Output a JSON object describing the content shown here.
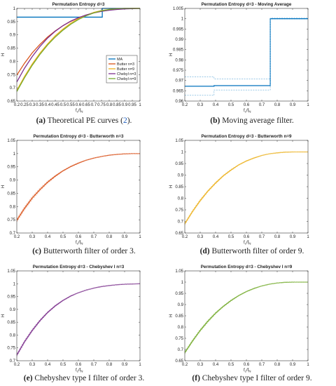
{
  "chart_data": [
    {
      "id": "a",
      "type": "line",
      "title": "Permutation Entropy d=3",
      "xlabel_main": "f",
      "xlabel_sub1": "c",
      "xlabel_mid": "/f",
      "xlabel_sub2": "N",
      "ylabel": "H",
      "xlim": [
        0.2,
        1
      ],
      "ylim": [
        0.65,
        1
      ],
      "xticks": [
        "0.2",
        "0.25",
        "0.3",
        "0.35",
        "0.4",
        "0.45",
        "0.5",
        "0.55",
        "0.6",
        "0.65",
        "0.7",
        "0.75",
        "0.8",
        "0.85",
        "0.9",
        "0.95",
        "1"
      ],
      "yticks": [
        "0.65",
        "0.7",
        "0.75",
        "0.8",
        "0.85",
        "0.9",
        "0.95",
        "1"
      ],
      "legend_position": "bottom-right",
      "caption_label": "(a)",
      "caption_text": " Theoretical PE curves (",
      "caption_ref": "2",
      "caption_end": ").",
      "series": [
        {
          "name": "MA",
          "color": "#0072bd",
          "x": [
            0.2,
            0.755,
            0.755,
            1
          ],
          "y": [
            0.967,
            0.967,
            1.0,
            1.0
          ]
        },
        {
          "name": "Butter n=3",
          "color": "#d95319",
          "x": [
            0.2,
            0.25,
            0.3,
            0.35,
            0.4,
            0.45,
            0.5,
            0.55,
            0.6,
            0.65,
            0.7,
            0.75,
            0.8,
            0.85,
            0.9,
            0.95,
            1
          ],
          "y": [
            0.748,
            0.793,
            0.832,
            0.864,
            0.892,
            0.915,
            0.935,
            0.951,
            0.964,
            0.975,
            0.983,
            0.989,
            0.994,
            0.997,
            0.999,
            1.0,
            1.0
          ]
        },
        {
          "name": "Butter n=9",
          "color": "#edb120",
          "x": [
            0.2,
            0.25,
            0.3,
            0.35,
            0.4,
            0.45,
            0.5,
            0.55,
            0.6,
            0.65,
            0.7,
            0.75,
            0.8,
            0.85,
            0.9,
            0.95,
            1
          ],
          "y": [
            0.69,
            0.743,
            0.79,
            0.831,
            0.866,
            0.897,
            0.922,
            0.944,
            0.961,
            0.974,
            0.985,
            0.992,
            0.996,
            0.999,
            1.0,
            1.0,
            1.0
          ]
        },
        {
          "name": "Chebyl n=3",
          "color": "#7e2f8e",
          "x": [
            0.2,
            0.25,
            0.3,
            0.35,
            0.4,
            0.45,
            0.5,
            0.55,
            0.6,
            0.65,
            0.7,
            0.75,
            0.8,
            0.85,
            0.9,
            0.95,
            1
          ],
          "y": [
            0.722,
            0.774,
            0.818,
            0.856,
            0.888,
            0.914,
            0.935,
            0.952,
            0.965,
            0.975,
            0.983,
            0.989,
            0.993,
            0.996,
            0.998,
            0.999,
            1.0
          ]
        },
        {
          "name": "Chebyl n=9",
          "color": "#77ac30",
          "x": [
            0.2,
            0.25,
            0.3,
            0.35,
            0.4,
            0.45,
            0.5,
            0.55,
            0.6,
            0.65,
            0.7,
            0.75,
            0.8,
            0.85,
            0.9,
            0.95,
            1
          ],
          "y": [
            0.686,
            0.738,
            0.785,
            0.826,
            0.862,
            0.892,
            0.918,
            0.94,
            0.958,
            0.972,
            0.983,
            0.991,
            0.996,
            0.999,
            1.0,
            1.0,
            1.0
          ]
        }
      ]
    },
    {
      "id": "b",
      "type": "line",
      "title": "Permutation Entropy d=3 - Moving Average",
      "xlabel_main": "f",
      "xlabel_sub1": "c",
      "xlabel_mid": "/f",
      "xlabel_sub2": "N",
      "ylabel": "H",
      "xlim": [
        0.2,
        1
      ],
      "ylim": [
        0.96,
        1.005
      ],
      "xticks": [
        "0.2",
        "0.3",
        "0.4",
        "0.5",
        "0.6",
        "0.7",
        "0.8",
        "0.9",
        "1"
      ],
      "yticks": [
        "0.96",
        "0.965",
        "0.97",
        "0.975",
        "0.98",
        "0.985",
        "0.99",
        "0.995",
        "1",
        "1.005"
      ],
      "caption_label": "(b)",
      "caption_text": " Moving average filter.",
      "series": [
        {
          "color": "#0072bd",
          "style": "solid",
          "x": [
            0.2,
            0.39,
            0.39,
            0.755,
            0.755,
            1
          ],
          "y": [
            0.9672,
            0.9672,
            0.9675,
            0.9675,
            1.0,
            1.0
          ]
        },
        {
          "color": "#5fa8d8",
          "style": "dashed",
          "x": [
            0.2,
            0.39,
            0.39,
            0.755,
            0.755,
            1
          ],
          "y": [
            0.9718,
            0.9718,
            0.9708,
            0.9708,
            1.0003,
            1.0003
          ]
        },
        {
          "color": "#5fa8d8",
          "style": "dashed",
          "x": [
            0.2,
            0.39,
            0.39,
            0.755,
            0.755,
            1
          ],
          "y": [
            0.9628,
            0.9628,
            0.9654,
            0.9654,
            0.9998,
            0.9998
          ]
        }
      ]
    },
    {
      "id": "c",
      "type": "line",
      "title": "Permutation Entropy d=3 - Butterworth n=3",
      "xlabel_main": "f",
      "xlabel_sub1": "c",
      "xlabel_mid": "/f",
      "xlabel_sub2": "N",
      "ylabel": "H",
      "xlim": [
        0.2,
        1
      ],
      "ylim": [
        0.7,
        1.05
      ],
      "xticks": [
        "0.2",
        "0.3",
        "0.4",
        "0.5",
        "0.6",
        "0.7",
        "0.8",
        "0.9",
        "1"
      ],
      "yticks": [
        "0.7",
        "0.75",
        "0.8",
        "0.85",
        "0.9",
        "0.95",
        "1",
        "1.05"
      ],
      "caption_label": "(c)",
      "caption_text": " Butterworth filter of order 3.",
      "series": [
        {
          "color": "#d95319",
          "style": "solid",
          "x": [
            0.2,
            0.25,
            0.3,
            0.35,
            0.4,
            0.45,
            0.5,
            0.55,
            0.6,
            0.65,
            0.7,
            0.75,
            0.8,
            0.85,
            0.9,
            0.95,
            1
          ],
          "y": [
            0.748,
            0.793,
            0.832,
            0.864,
            0.892,
            0.915,
            0.935,
            0.951,
            0.964,
            0.975,
            0.983,
            0.989,
            0.994,
            0.997,
            0.999,
            1.0,
            1.0
          ]
        },
        {
          "color": "#e8967a",
          "style": "dashed",
          "x": [
            0.2,
            0.25,
            0.3,
            0.35,
            0.4,
            0.45,
            0.5,
            0.55,
            0.6,
            0.65,
            0.7,
            0.75,
            0.8,
            0.85,
            0.9,
            0.95,
            1
          ],
          "y": [
            0.754,
            0.799,
            0.838,
            0.869,
            0.896,
            0.918,
            0.937,
            0.953,
            0.966,
            0.976,
            0.984,
            0.99,
            0.995,
            0.998,
            1.0,
            1.0,
            1.0
          ]
        },
        {
          "color": "#e8967a",
          "style": "dashed",
          "x": [
            0.2,
            0.25,
            0.3,
            0.35,
            0.4,
            0.45,
            0.5,
            0.55,
            0.6,
            0.65,
            0.7,
            0.75,
            0.8,
            0.85,
            0.9,
            0.95,
            1
          ],
          "y": [
            0.742,
            0.787,
            0.826,
            0.859,
            0.888,
            0.912,
            0.933,
            0.949,
            0.962,
            0.974,
            0.982,
            0.988,
            0.993,
            0.996,
            0.998,
            0.999,
            1.0
          ]
        }
      ]
    },
    {
      "id": "d",
      "type": "line",
      "title": "Permutation Entropy d=3 - Butterworth n=9",
      "xlabel_main": "f",
      "xlabel_sub1": "c",
      "xlabel_mid": "/f",
      "xlabel_sub2": "N",
      "ylabel": "H",
      "xlim": [
        0.2,
        1
      ],
      "ylim": [
        0.65,
        1.05
      ],
      "xticks": [
        "0.2",
        "0.3",
        "0.4",
        "0.5",
        "0.6",
        "0.7",
        "0.8",
        "0.9",
        "1"
      ],
      "yticks": [
        "0.65",
        "0.7",
        "0.75",
        "0.8",
        "0.85",
        "0.9",
        "0.95",
        "1",
        "1.05"
      ],
      "caption_label": "(d)",
      "caption_text": " Butterworth filter of order 9.",
      "series": [
        {
          "color": "#edb120",
          "style": "solid",
          "x": [
            0.2,
            0.25,
            0.3,
            0.35,
            0.4,
            0.45,
            0.5,
            0.55,
            0.6,
            0.65,
            0.7,
            0.75,
            0.8,
            0.85,
            0.9,
            0.95,
            1
          ],
          "y": [
            0.69,
            0.743,
            0.79,
            0.831,
            0.866,
            0.897,
            0.922,
            0.944,
            0.961,
            0.974,
            0.985,
            0.992,
            0.996,
            0.999,
            1.0,
            1.0,
            1.0
          ]
        },
        {
          "color": "#f2d27a",
          "style": "dashed",
          "x": [
            0.2,
            0.25,
            0.3,
            0.35,
            0.4,
            0.45,
            0.5,
            0.55,
            0.6,
            0.65,
            0.7,
            0.75,
            0.8,
            0.85,
            0.9,
            0.95,
            1
          ],
          "y": [
            0.695,
            0.748,
            0.795,
            0.835,
            0.87,
            0.9,
            0.925,
            0.946,
            0.963,
            0.976,
            0.986,
            0.993,
            0.997,
            1.0,
            1.001,
            1.0,
            1.0
          ]
        },
        {
          "color": "#f2d27a",
          "style": "dashed",
          "x": [
            0.2,
            0.25,
            0.3,
            0.35,
            0.4,
            0.45,
            0.5,
            0.55,
            0.6,
            0.65,
            0.7,
            0.75,
            0.8,
            0.85,
            0.9,
            0.95,
            1
          ],
          "y": [
            0.685,
            0.738,
            0.785,
            0.827,
            0.862,
            0.894,
            0.919,
            0.942,
            0.959,
            0.972,
            0.984,
            0.991,
            0.995,
            0.998,
            0.999,
            1.0,
            1.0
          ]
        }
      ]
    },
    {
      "id": "e",
      "type": "line",
      "title": "Permutation Entropy d=3 - Chebyshev I n=3",
      "xlabel_main": "f",
      "xlabel_sub1": "c",
      "xlabel_mid": "/f",
      "xlabel_sub2": "N",
      "ylabel": "H",
      "xlim": [
        0.2,
        1
      ],
      "ylim": [
        0.7,
        1.05
      ],
      "xticks": [
        "0.2",
        "0.3",
        "0.4",
        "0.5",
        "0.6",
        "0.7",
        "0.8",
        "0.9",
        "1"
      ],
      "yticks": [
        "0.7",
        "0.75",
        "0.8",
        "0.85",
        "0.9",
        "0.95",
        "1",
        "1.05"
      ],
      "caption_label": "(e)",
      "caption_text": " Chebyshev type I filter of order 3.",
      "series": [
        {
          "color": "#7e2f8e",
          "style": "solid",
          "x": [
            0.2,
            0.25,
            0.3,
            0.35,
            0.4,
            0.45,
            0.5,
            0.55,
            0.6,
            0.65,
            0.7,
            0.75,
            0.8,
            0.85,
            0.9,
            0.95,
            1
          ],
          "y": [
            0.722,
            0.774,
            0.818,
            0.856,
            0.888,
            0.914,
            0.935,
            0.952,
            0.965,
            0.975,
            0.983,
            0.989,
            0.993,
            0.996,
            0.998,
            0.999,
            1.0
          ]
        },
        {
          "color": "#b38fbd",
          "style": "dashed",
          "x": [
            0.2,
            0.25,
            0.3,
            0.35,
            0.4,
            0.45,
            0.5,
            0.55,
            0.6,
            0.65,
            0.7,
            0.75,
            0.8,
            0.85,
            0.9,
            0.95,
            1
          ],
          "y": [
            0.727,
            0.779,
            0.823,
            0.86,
            0.891,
            0.917,
            0.937,
            0.954,
            0.966,
            0.976,
            0.984,
            0.99,
            0.994,
            0.997,
            0.999,
            1.0,
            1.0
          ]
        },
        {
          "color": "#b38fbd",
          "style": "dashed",
          "x": [
            0.2,
            0.25,
            0.3,
            0.35,
            0.4,
            0.45,
            0.5,
            0.55,
            0.6,
            0.65,
            0.7,
            0.75,
            0.8,
            0.85,
            0.9,
            0.95,
            1
          ],
          "y": [
            0.717,
            0.769,
            0.813,
            0.852,
            0.885,
            0.911,
            0.933,
            0.95,
            0.964,
            0.974,
            0.982,
            0.988,
            0.992,
            0.995,
            0.997,
            0.998,
            1.0
          ]
        }
      ]
    },
    {
      "id": "f",
      "type": "line",
      "title": "Permutation Entropy d=3 - Chebyshev I n=9",
      "xlabel_main": "f",
      "xlabel_sub1": "c",
      "xlabel_mid": "/f",
      "xlabel_sub2": "N",
      "ylabel": "H",
      "xlim": [
        0.2,
        1
      ],
      "ylim": [
        0.65,
        1.05
      ],
      "xticks": [
        "0.2",
        "0.3",
        "0.4",
        "0.5",
        "0.6",
        "0.7",
        "0.8",
        "0.9",
        "1"
      ],
      "yticks": [
        "0.65",
        "0.7",
        "0.75",
        "0.8",
        "0.85",
        "0.9",
        "0.95",
        "1",
        "1.05"
      ],
      "caption_label": "(f)",
      "caption_text": " Chebyshev type I filter of order 9.",
      "series": [
        {
          "color": "#77ac30",
          "style": "solid",
          "x": [
            0.2,
            0.25,
            0.3,
            0.35,
            0.4,
            0.45,
            0.5,
            0.55,
            0.6,
            0.65,
            0.7,
            0.75,
            0.8,
            0.85,
            0.9,
            0.95,
            1
          ],
          "y": [
            0.686,
            0.738,
            0.785,
            0.826,
            0.862,
            0.892,
            0.918,
            0.94,
            0.958,
            0.972,
            0.983,
            0.991,
            0.996,
            0.999,
            1.0,
            1.0,
            1.0
          ]
        },
        {
          "color": "#a9cd7f",
          "style": "dashed",
          "x": [
            0.2,
            0.25,
            0.3,
            0.35,
            0.4,
            0.45,
            0.5,
            0.55,
            0.6,
            0.65,
            0.7,
            0.75,
            0.8,
            0.85,
            0.9,
            0.95,
            1
          ],
          "y": [
            0.691,
            0.743,
            0.79,
            0.831,
            0.866,
            0.895,
            0.921,
            0.942,
            0.96,
            0.974,
            0.984,
            0.992,
            0.997,
            1.0,
            1.001,
            1.0,
            1.0
          ]
        },
        {
          "color": "#a9cd7f",
          "style": "dashed",
          "x": [
            0.2,
            0.25,
            0.3,
            0.35,
            0.4,
            0.45,
            0.5,
            0.55,
            0.6,
            0.65,
            0.7,
            0.75,
            0.8,
            0.85,
            0.9,
            0.95,
            1
          ],
          "y": [
            0.681,
            0.733,
            0.78,
            0.821,
            0.858,
            0.889,
            0.915,
            0.938,
            0.956,
            0.97,
            0.982,
            0.99,
            0.995,
            0.998,
            0.999,
            1.0,
            1.0
          ]
        }
      ]
    }
  ]
}
